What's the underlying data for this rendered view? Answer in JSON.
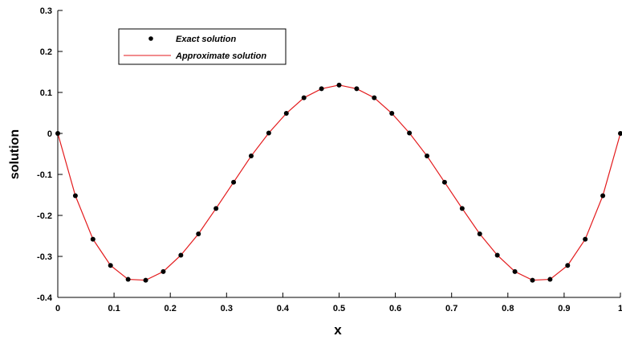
{
  "chart_data": {
    "type": "line",
    "xlabel": "x",
    "ylabel": "solution",
    "xlim": [
      0,
      1
    ],
    "ylim": [
      -0.4,
      0.3
    ],
    "x_ticks": [
      0,
      0.1,
      0.2,
      0.3,
      0.4,
      0.5,
      0.6,
      0.7,
      0.8,
      0.9,
      1
    ],
    "x_tick_labels": [
      "0",
      "0.1",
      "0.2",
      "0.3",
      "0.4",
      "0.5",
      "0.6",
      "0.7",
      "0.8",
      "0.9",
      "1"
    ],
    "y_ticks": [
      0.3,
      0.2,
      0.1,
      0,
      -0.1,
      -0.2,
      -0.3,
      -0.4
    ],
    "y_tick_labels": [
      "0.3",
      "0.2",
      "0.1",
      "0",
      "-0.1",
      "-0.2",
      "-0.3",
      "-0.4"
    ],
    "grid": false,
    "legend_position": "top-left",
    "x": [
      0,
      0.03125,
      0.0625,
      0.09375,
      0.125,
      0.15625,
      0.1875,
      0.21875,
      0.25,
      0.28125,
      0.3125,
      0.34375,
      0.375,
      0.40625,
      0.4375,
      0.46875,
      0.5,
      0.53125,
      0.5625,
      0.59375,
      0.625,
      0.65625,
      0.6875,
      0.71875,
      0.75,
      0.78125,
      0.8125,
      0.84375,
      0.875,
      0.90625,
      0.9375,
      0.96875,
      1
    ],
    "series": [
      {
        "name": "Exact solution",
        "style": "markers",
        "color": "#000000",
        "values": [
          0,
          -0.152,
          -0.258,
          -0.322,
          -0.356,
          -0.358,
          -0.337,
          -0.297,
          -0.245,
          -0.183,
          -0.119,
          -0.055,
          0.001,
          0.049,
          0.087,
          0.109,
          0.118,
          0.109,
          0.087,
          0.049,
          0.001,
          -0.055,
          -0.119,
          -0.183,
          -0.245,
          -0.297,
          -0.337,
          -0.358,
          -0.356,
          -0.322,
          -0.258,
          -0.152,
          0
        ]
      },
      {
        "name": "Approximate solution",
        "style": "line",
        "color": "#e31a1c",
        "values": [
          0,
          -0.152,
          -0.258,
          -0.322,
          -0.356,
          -0.358,
          -0.337,
          -0.297,
          -0.245,
          -0.183,
          -0.119,
          -0.055,
          0.001,
          0.049,
          0.087,
          0.109,
          0.118,
          0.109,
          0.087,
          0.049,
          0.001,
          -0.055,
          -0.119,
          -0.183,
          -0.245,
          -0.297,
          -0.337,
          -0.358,
          -0.356,
          -0.322,
          -0.258,
          -0.152,
          0
        ]
      }
    ]
  }
}
